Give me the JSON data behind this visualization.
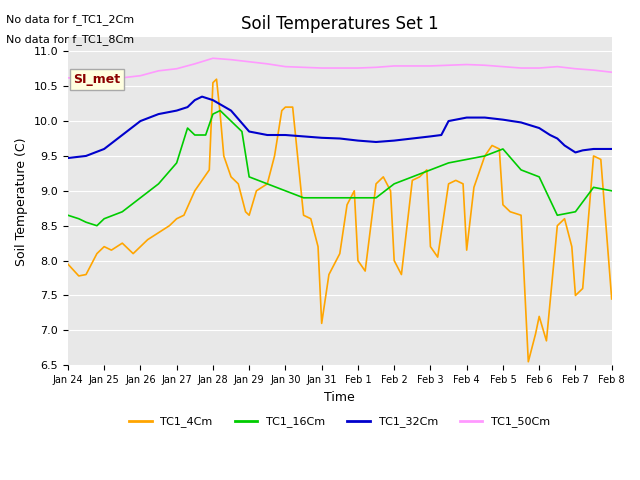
{
  "title": "Soil Temperatures Set 1",
  "xlabel": "Time",
  "ylabel": "Soil Temperature (C)",
  "ylim": [
    6.5,
    11.2
  ],
  "xlim": [
    0,
    15
  ],
  "background_color": "#e8e8e8",
  "plot_bg_color": "#e8e8e8",
  "fig_bg_color": "#ffffff",
  "no_data_text1": "No data for f_TC1_2Cm",
  "no_data_text2": "No data for f_TC1_8Cm",
  "SI_met_label": "SI_met",
  "line_colors": {
    "TC1_4Cm": "#FFA500",
    "TC1_16Cm": "#00CC00",
    "TC1_32Cm": "#0000CC",
    "TC1_50Cm": "#FF99FF"
  },
  "legend_labels": [
    "TC1_4Cm",
    "TC1_16Cm",
    "TC1_32Cm",
    "TC1_50Cm"
  ],
  "tick_labels": [
    "Jan 24",
    "Jan 25",
    "Jan 26",
    "Jan 27",
    "Jan 28",
    "Jan 29",
    "Jan 30",
    "Jan 31",
    "Feb 1",
    "Feb 2",
    "Feb 3",
    "Feb 4",
    "Feb 5",
    "Feb 6",
    "Feb 7",
    "Feb 8"
  ],
  "yticks": [
    6.5,
    7.0,
    7.5,
    8.0,
    8.5,
    9.0,
    9.5,
    10.0,
    10.5,
    11.0
  ],
  "TC1_4Cm_x": [
    0,
    0.3,
    0.5,
    0.8,
    1.0,
    1.2,
    1.5,
    1.8,
    2.0,
    2.2,
    2.5,
    2.8,
    3.0,
    3.2,
    3.5,
    3.7,
    3.9,
    4.0,
    4.1,
    4.2,
    4.3,
    4.5,
    4.7,
    4.9,
    5.0,
    5.2,
    5.5,
    5.7,
    5.9,
    6.0,
    6.2,
    6.5,
    6.7,
    6.9,
    7.0,
    7.2,
    7.5,
    7.7,
    7.9,
    8.0,
    8.2,
    8.5,
    8.7,
    8.9,
    9.0,
    9.2,
    9.5,
    9.7,
    9.9,
    10.0,
    10.2,
    10.5,
    10.7,
    10.9,
    11.0,
    11.2,
    11.5,
    11.7,
    11.9,
    12.0,
    12.2,
    12.5,
    12.7,
    12.9,
    13.0,
    13.2,
    13.5,
    13.7,
    13.9,
    14.0,
    14.2,
    14.5,
    14.7,
    15.0
  ],
  "TC1_4Cm_y": [
    7.95,
    7.78,
    7.8,
    8.1,
    8.2,
    8.15,
    8.25,
    8.1,
    8.2,
    8.3,
    8.4,
    8.5,
    8.6,
    8.65,
    9.0,
    9.15,
    9.3,
    10.55,
    10.6,
    10.1,
    9.5,
    9.2,
    9.1,
    8.7,
    8.65,
    9.0,
    9.1,
    9.5,
    10.15,
    10.2,
    10.2,
    8.65,
    8.6,
    8.2,
    7.1,
    7.8,
    8.1,
    8.8,
    9.0,
    8.0,
    7.85,
    9.1,
    9.2,
    9.0,
    8.0,
    7.8,
    9.15,
    9.2,
    9.3,
    8.2,
    8.05,
    9.1,
    9.15,
    9.1,
    8.15,
    9.05,
    9.5,
    9.65,
    9.6,
    8.8,
    8.7,
    8.65,
    6.55,
    6.95,
    7.2,
    6.85,
    8.5,
    8.6,
    8.2,
    7.5,
    7.6,
    9.5,
    9.45,
    7.45
  ],
  "TC1_16Cm_x": [
    0,
    0.3,
    0.5,
    0.8,
    1.0,
    1.5,
    2.0,
    2.5,
    3.0,
    3.3,
    3.5,
    3.8,
    4.0,
    4.2,
    4.5,
    4.8,
    5.0,
    5.5,
    6.0,
    6.5,
    7.0,
    7.5,
    8.0,
    8.5,
    9.0,
    9.5,
    10.0,
    10.5,
    11.0,
    11.5,
    12.0,
    12.5,
    13.0,
    13.5,
    14.0,
    14.5,
    15.0
  ],
  "TC1_16Cm_y": [
    8.65,
    8.6,
    8.55,
    8.5,
    8.6,
    8.7,
    8.9,
    9.1,
    9.4,
    9.9,
    9.8,
    9.8,
    10.1,
    10.15,
    10.0,
    9.85,
    9.2,
    9.1,
    9.0,
    8.9,
    8.9,
    8.9,
    8.9,
    8.9,
    9.1,
    9.2,
    9.3,
    9.4,
    9.45,
    9.5,
    9.6,
    9.3,
    9.2,
    8.65,
    8.7,
    9.05,
    9.0
  ],
  "TC1_32Cm_x": [
    0,
    0.5,
    1.0,
    1.5,
    2.0,
    2.5,
    3.0,
    3.3,
    3.5,
    3.7,
    4.0,
    4.5,
    5.0,
    5.5,
    6.0,
    6.5,
    7.0,
    7.5,
    8.0,
    8.5,
    9.0,
    9.5,
    10.0,
    10.3,
    10.5,
    11.0,
    11.5,
    12.0,
    12.5,
    13.0,
    13.3,
    13.5,
    13.7,
    14.0,
    14.2,
    14.5,
    15.0
  ],
  "TC1_32Cm_y": [
    9.47,
    9.5,
    9.6,
    9.8,
    10.0,
    10.1,
    10.15,
    10.2,
    10.3,
    10.35,
    10.3,
    10.15,
    9.85,
    9.8,
    9.8,
    9.78,
    9.76,
    9.75,
    9.72,
    9.7,
    9.72,
    9.75,
    9.78,
    9.8,
    10.0,
    10.05,
    10.05,
    10.02,
    9.98,
    9.9,
    9.8,
    9.75,
    9.65,
    9.55,
    9.58,
    9.6,
    9.6
  ],
  "TC1_50Cm_x": [
    0,
    0.5,
    1.0,
    1.5,
    2.0,
    2.5,
    3.0,
    3.5,
    4.0,
    4.5,
    5.0,
    5.5,
    6.0,
    6.5,
    7.0,
    7.5,
    8.0,
    8.5,
    9.0,
    9.5,
    10.0,
    10.5,
    11.0,
    11.5,
    12.0,
    12.5,
    13.0,
    13.5,
    14.0,
    14.5,
    15.0
  ],
  "TC1_50Cm_y": [
    10.62,
    10.6,
    10.6,
    10.62,
    10.65,
    10.72,
    10.75,
    10.82,
    10.9,
    10.88,
    10.85,
    10.82,
    10.78,
    10.77,
    10.76,
    10.76,
    10.76,
    10.77,
    10.79,
    10.79,
    10.79,
    10.8,
    10.81,
    10.8,
    10.78,
    10.76,
    10.76,
    10.78,
    10.75,
    10.73,
    10.7
  ]
}
